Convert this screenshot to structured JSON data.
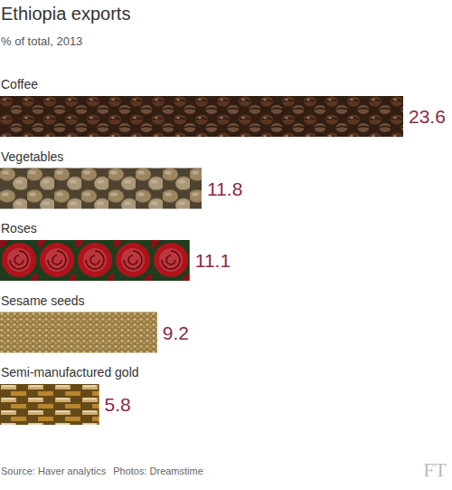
{
  "chart_data": {
    "type": "bar",
    "orientation": "horizontal",
    "title": "Ethiopia exports",
    "subtitle": "% of total, 2013",
    "categories": [
      "Coffee",
      "Vegetables",
      "Roses",
      "Sesame seeds",
      "Semi-manufactured gold"
    ],
    "values": [
      23.6,
      11.8,
      11.1,
      9.2,
      5.8
    ],
    "colors": [
      "#5a3520",
      "#9c8660",
      "#b0121b",
      "#c9a45c",
      "#b8862b"
    ],
    "xlim": [
      0,
      23.6
    ],
    "data_labels": true,
    "tick_labels": false,
    "grid": false,
    "source": "Source: Haver analytics",
    "photos": "Photos: Dreamstime",
    "logo": "FT"
  }
}
